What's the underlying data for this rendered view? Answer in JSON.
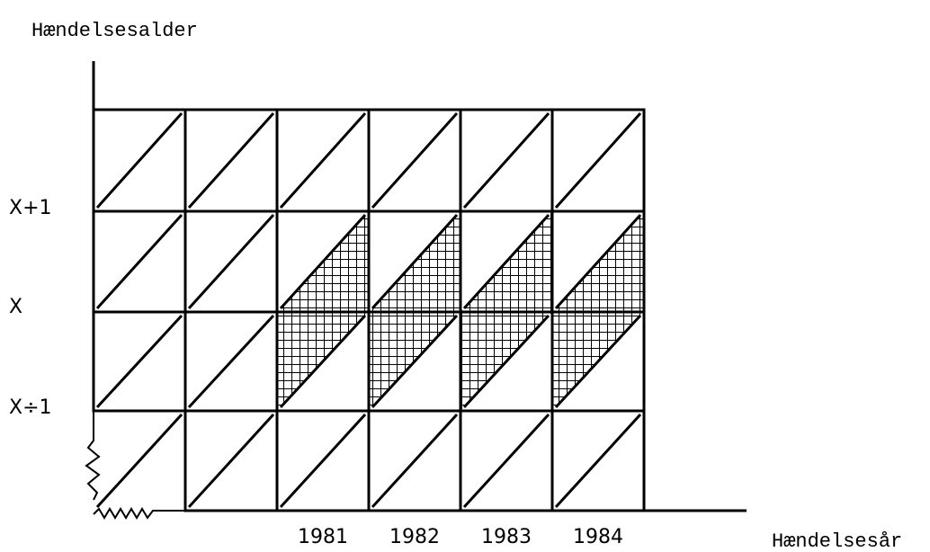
{
  "axis_labels": {
    "y": "Hændelsesalder",
    "x": "Hændelsesår"
  },
  "y_labels": [
    "X+1",
    "X",
    "X÷1"
  ],
  "x_labels": [
    "1981",
    "1982",
    "1983",
    "1984"
  ]
}
